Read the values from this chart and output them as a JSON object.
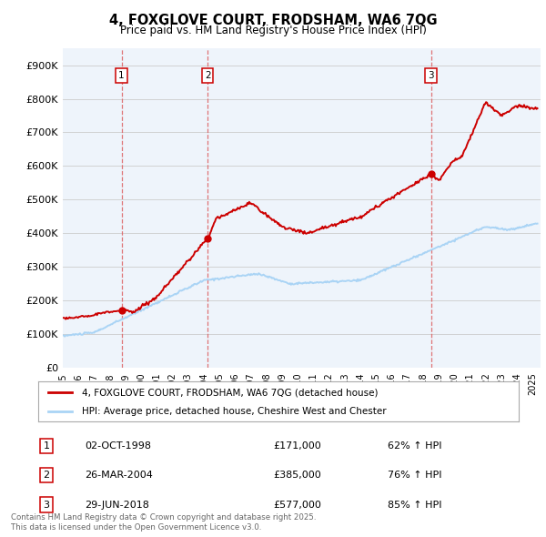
{
  "title": "4, FOXGLOVE COURT, FRODSHAM, WA6 7QG",
  "subtitle": "Price paid vs. HM Land Registry's House Price Index (HPI)",
  "ylim": [
    0,
    950000
  ],
  "yticks": [
    0,
    100000,
    200000,
    300000,
    400000,
    500000,
    600000,
    700000,
    800000,
    900000
  ],
  "ytick_labels": [
    "£0",
    "£100K",
    "£200K",
    "£300K",
    "£400K",
    "£500K",
    "£600K",
    "£700K",
    "£800K",
    "£900K"
  ],
  "xlim": [
    1995,
    2025.5
  ],
  "xticks": [
    1995,
    1996,
    1997,
    1998,
    1999,
    2000,
    2001,
    2002,
    2003,
    2004,
    2005,
    2006,
    2007,
    2008,
    2009,
    2010,
    2011,
    2012,
    2013,
    2014,
    2015,
    2016,
    2017,
    2018,
    2019,
    2020,
    2021,
    2022,
    2023,
    2024,
    2025
  ],
  "purchases": [
    {
      "label": "1",
      "date": "02-OCT-1998",
      "price": 171000,
      "hpi_pct": "62% ↑ HPI",
      "x": 1998.75
    },
    {
      "label": "2",
      "date": "26-MAR-2004",
      "price": 385000,
      "hpi_pct": "76% ↑ HPI",
      "x": 2004.25
    },
    {
      "label": "3",
      "date": "29-JUN-2018",
      "price": 577000,
      "hpi_pct": "85% ↑ HPI",
      "x": 2018.5
    }
  ],
  "legend_line1": "4, FOXGLOVE COURT, FRODSHAM, WA6 7QG (detached house)",
  "legend_line2": "HPI: Average price, detached house, Cheshire West and Chester",
  "footer1": "Contains HM Land Registry data © Crown copyright and database right 2025.",
  "footer2": "This data is licensed under the Open Government Licence v3.0.",
  "red_color": "#cc0000",
  "blue_color": "#aad4f5",
  "dot_color": "#cc0000",
  "vline_color": "#dd6666",
  "bg_color": "#ffffff",
  "grid_color": "#cccccc",
  "chart_bg": "#eef4fb"
}
